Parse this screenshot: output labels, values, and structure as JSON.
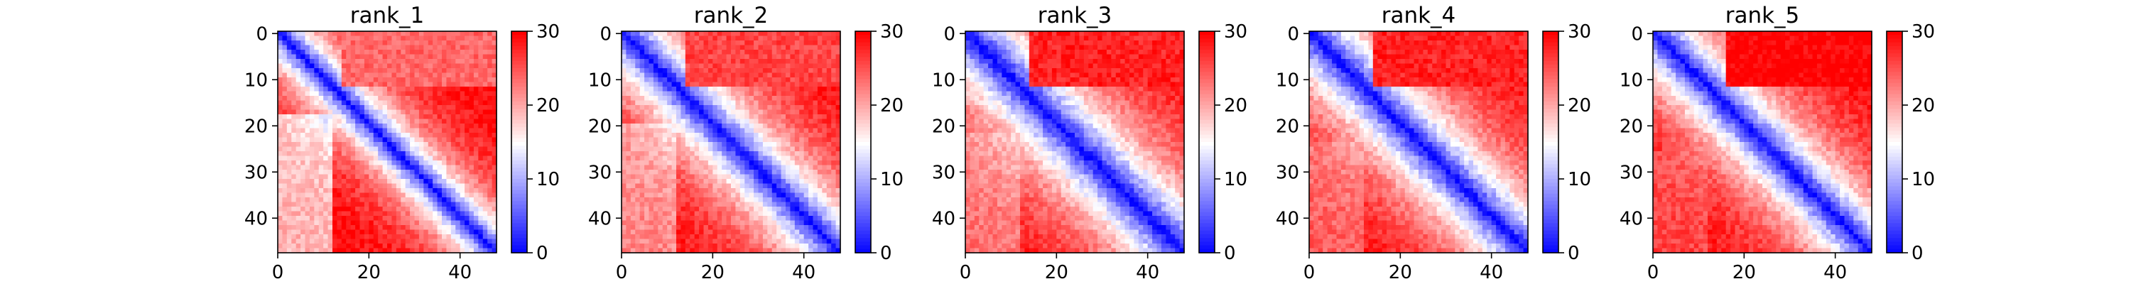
{
  "chart_data": [
    {
      "type": "heatmap",
      "title": "rank_1",
      "n": 48,
      "xticks": [
        0,
        20,
        40
      ],
      "yticks": [
        0,
        10,
        20,
        30,
        40
      ],
      "colorbar": {
        "range": [
          0,
          30
        ],
        "ticks": [
          0,
          10,
          20,
          30
        ],
        "colormap": "bwr"
      },
      "pattern": {
        "stripe": 8,
        "sep_start": 12,
        "sep_end": 14,
        "block_lo": 12,
        "block_hi": 18,
        "upper_block": 24,
        "lower_block": 16
      }
    },
    {
      "type": "heatmap",
      "title": "rank_2",
      "n": 48,
      "xticks": [
        0,
        20,
        40
      ],
      "yticks": [
        0,
        10,
        20,
        30,
        40
      ],
      "colorbar": {
        "range": [
          0,
          30
        ],
        "ticks": [
          0,
          10,
          20,
          30
        ],
        "colormap": "bwr"
      },
      "pattern": {
        "stripe": 11,
        "sep_start": 12,
        "sep_end": 14,
        "block_lo": 12,
        "block_hi": 20,
        "upper_block": 26,
        "lower_block": 22
      }
    },
    {
      "type": "heatmap",
      "title": "rank_3",
      "n": 48,
      "xticks": [
        0,
        20,
        40
      ],
      "yticks": [
        0,
        10,
        20,
        30,
        40
      ],
      "colorbar": {
        "range": [
          0,
          30
        ],
        "ticks": [
          0,
          10,
          20,
          30
        ],
        "colormap": "bwr"
      },
      "pattern": {
        "stripe": 13,
        "sep_start": 12,
        "sep_end": 14,
        "block_lo": 14,
        "block_hi": 22,
        "upper_block": 28,
        "lower_block": 25
      }
    },
    {
      "type": "heatmap",
      "title": "rank_4",
      "n": 48,
      "xticks": [
        0,
        20,
        40
      ],
      "yticks": [
        0,
        10,
        20,
        30,
        40
      ],
      "colorbar": {
        "range": [
          0,
          30
        ],
        "ticks": [
          0,
          10,
          20,
          30
        ],
        "colormap": "bwr"
      },
      "pattern": {
        "stripe": 12,
        "sep_start": 12,
        "sep_end": 14,
        "block_lo": 14,
        "block_hi": 24,
        "upper_block": 28,
        "lower_block": 27
      }
    },
    {
      "type": "heatmap",
      "title": "rank_5",
      "n": 48,
      "xticks": [
        0,
        20,
        40
      ],
      "yticks": [
        0,
        10,
        20,
        30,
        40
      ],
      "colorbar": {
        "range": [
          0,
          30
        ],
        "ticks": [
          0,
          10,
          20,
          30
        ],
        "colormap": "bwr"
      },
      "pattern": {
        "stripe": 11,
        "sep_start": 12,
        "sep_end": 14,
        "block_lo": 16,
        "block_hi": 26,
        "upper_block": 30,
        "lower_block": 30
      }
    }
  ]
}
